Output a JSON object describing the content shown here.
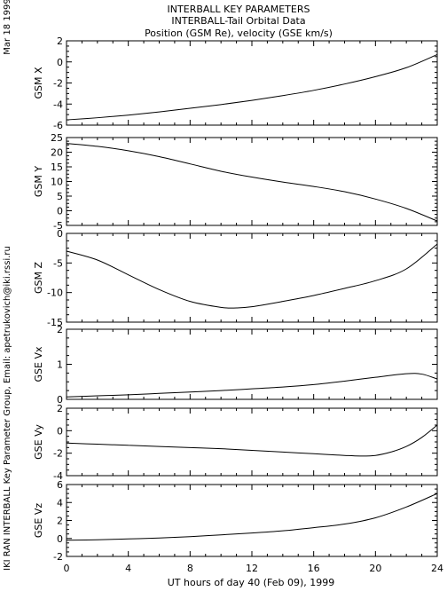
{
  "header": {
    "title_line1": "INTERBALL KEY PARAMETERS",
    "title_line2": "INTERBALL-Tail Orbital Data",
    "title_line3": "Position (GSM Re), velocity (GSE km/s)"
  },
  "side": {
    "date": "Mar 18 1999",
    "credit": "IKI RAN INTERBALL Key Parameter Group, Email: apetrukovich@iki.rssi.ru"
  },
  "chart_data": {
    "type": "line",
    "xlabel": "UT hours of day  40 (Feb 09), 1999",
    "xlim": [
      0,
      24
    ],
    "xticks": [
      0,
      4,
      8,
      12,
      16,
      20,
      24
    ],
    "xtick_labels": [
      "0",
      "4",
      "8",
      "12",
      "16",
      "20",
      "24"
    ],
    "grid": false,
    "panels": [
      {
        "ylabel": "GSM X",
        "ylim": [
          -6,
          2
        ],
        "yticks": [
          -6,
          -4,
          -2,
          0,
          2
        ],
        "ytick_labels": [
          "-6",
          "-4",
          "-2",
          "0",
          "2"
        ],
        "x": [
          0,
          2,
          4,
          6,
          8,
          10,
          12,
          14,
          16,
          18,
          20,
          22,
          24
        ],
        "y": [
          -5.5,
          -5.3,
          -5.05,
          -4.75,
          -4.4,
          -4.05,
          -3.65,
          -3.2,
          -2.7,
          -2.1,
          -1.4,
          -0.55,
          0.7
        ]
      },
      {
        "ylabel": "GSM Y",
        "ylim": [
          -5,
          25
        ],
        "yticks": [
          -5,
          0,
          5,
          10,
          15,
          20,
          25
        ],
        "ytick_labels": [
          "-5",
          "0",
          "5",
          "10",
          "15",
          "20",
          "25"
        ],
        "x": [
          0,
          2,
          4,
          6,
          8,
          10,
          12,
          14,
          16,
          18,
          20,
          22,
          24
        ],
        "y": [
          23,
          22,
          20.5,
          18.5,
          16,
          13.5,
          11.5,
          9.8,
          8.3,
          6.5,
          4,
          0.8,
          -3.5
        ]
      },
      {
        "ylabel": "GSM Z",
        "ylim": [
          -15,
          0
        ],
        "yticks": [
          -15,
          -10,
          -5,
          0
        ],
        "ytick_labels": [
          "-15",
          "-10",
          "-5",
          "0"
        ],
        "x": [
          0,
          2,
          4,
          6,
          8,
          10,
          11,
          12,
          14,
          16,
          18,
          20,
          22,
          24
        ],
        "y": [
          -3,
          -4.5,
          -7,
          -9.5,
          -11.5,
          -12.5,
          -12.6,
          -12.4,
          -11.5,
          -10.5,
          -9.3,
          -8,
          -6,
          -1.8
        ]
      },
      {
        "ylabel": "GSE Vx",
        "ylim": [
          0,
          2
        ],
        "yticks": [
          0,
          1,
          2
        ],
        "ytick_labels": [
          "0",
          "1",
          "2"
        ],
        "x": [
          0,
          2,
          4,
          6,
          8,
          10,
          12,
          14,
          16,
          18,
          20,
          22,
          23,
          24
        ],
        "y": [
          0.07,
          0.1,
          0.13,
          0.17,
          0.21,
          0.25,
          0.3,
          0.35,
          0.42,
          0.52,
          0.63,
          0.73,
          0.72,
          0.58
        ]
      },
      {
        "ylabel": "GSE Vy",
        "ylim": [
          -4,
          2
        ],
        "yticks": [
          -4,
          -2,
          0,
          2
        ],
        "ytick_labels": [
          "-4",
          "-2",
          "0",
          "2"
        ],
        "x": [
          0,
          2,
          4,
          6,
          8,
          10,
          12,
          14,
          16,
          18,
          19,
          20,
          21,
          22,
          23,
          24
        ],
        "y": [
          -1.1,
          -1.2,
          -1.3,
          -1.4,
          -1.5,
          -1.6,
          -1.75,
          -1.9,
          -2.05,
          -2.2,
          -2.25,
          -2.2,
          -1.9,
          -1.4,
          -0.6,
          0.5
        ]
      },
      {
        "ylabel": "GSE Vz",
        "ylim": [
          -2,
          6
        ],
        "yticks": [
          -2,
          0,
          2,
          4,
          6
        ],
        "ytick_labels": [
          "-2",
          "0",
          "2",
          "4",
          "6"
        ],
        "x": [
          0,
          2,
          4,
          6,
          8,
          10,
          12,
          14,
          16,
          18,
          20,
          22,
          24
        ],
        "y": [
          -0.2,
          -0.15,
          -0.05,
          0.05,
          0.2,
          0.4,
          0.6,
          0.85,
          1.2,
          1.6,
          2.3,
          3.5,
          5.0
        ]
      }
    ]
  }
}
